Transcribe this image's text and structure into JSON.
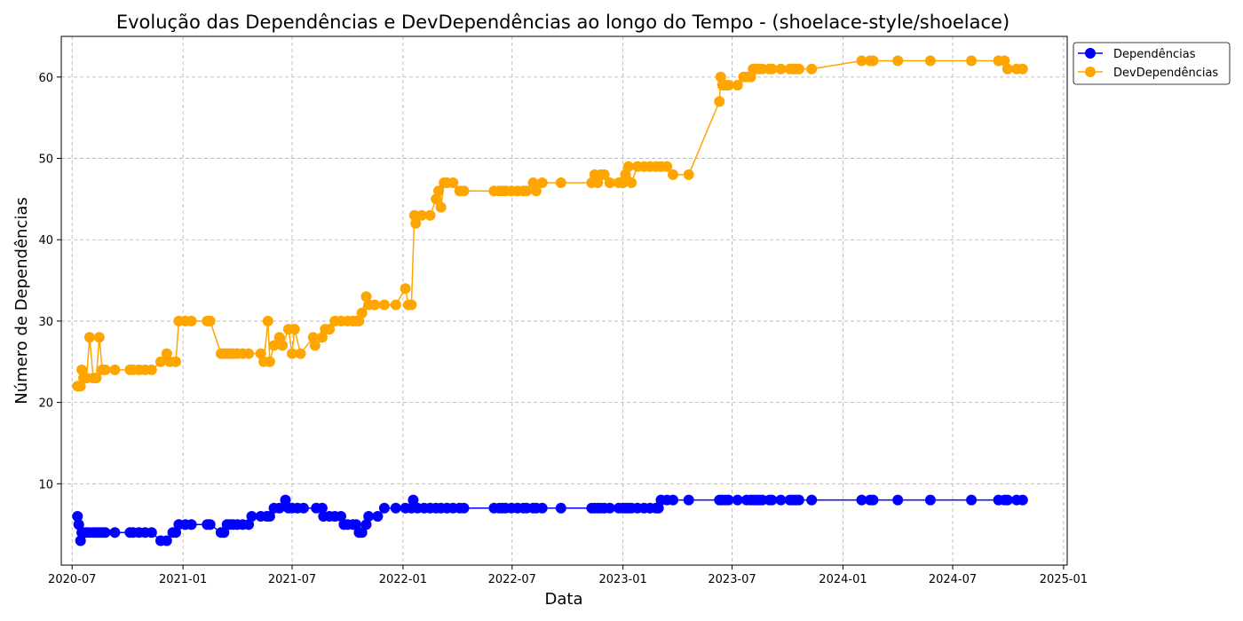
{
  "chart_data": {
    "type": "line",
    "title": "Evolução das Dependências e DevDependências ao longo do Tempo - (shoelace-style/shoelace)",
    "xlabel": "Data",
    "ylabel": "Número de Dependências",
    "xlim": [
      "2020-06-13",
      "2025-01-07"
    ],
    "ylim": [
      0,
      65
    ],
    "x_ticks": [
      "2020-07",
      "2021-01",
      "2021-07",
      "2022-01",
      "2022-07",
      "2023-01",
      "2023-07",
      "2024-01",
      "2024-07",
      "2025-01"
    ],
    "y_ticks": [
      10,
      20,
      30,
      40,
      50,
      60
    ],
    "grid": true,
    "legend_position": "outside-top-right",
    "series": [
      {
        "name": "Dependências",
        "color": "#0000ff",
        "points": [
          [
            "2020-07-10",
            6
          ],
          [
            "2020-07-12",
            5
          ],
          [
            "2020-07-15",
            3
          ],
          [
            "2020-07-17",
            4
          ],
          [
            "2020-07-20",
            4
          ],
          [
            "2020-07-25",
            4
          ],
          [
            "2020-07-30",
            4
          ],
          [
            "2020-08-05",
            4
          ],
          [
            "2020-08-10",
            4
          ],
          [
            "2020-08-15",
            4
          ],
          [
            "2020-08-20",
            4
          ],
          [
            "2020-08-25",
            4
          ],
          [
            "2020-09-10",
            4
          ],
          [
            "2020-10-05",
            4
          ],
          [
            "2020-10-10",
            4
          ],
          [
            "2020-10-20",
            4
          ],
          [
            "2020-10-30",
            4
          ],
          [
            "2020-11-10",
            4
          ],
          [
            "2020-11-25",
            3
          ],
          [
            "2020-12-05",
            3
          ],
          [
            "2020-12-15",
            4
          ],
          [
            "2020-12-20",
            4
          ],
          [
            "2020-12-25",
            5
          ],
          [
            "2021-01-05",
            5
          ],
          [
            "2021-01-15",
            5
          ],
          [
            "2021-02-10",
            5
          ],
          [
            "2021-02-15",
            5
          ],
          [
            "2021-03-05",
            4
          ],
          [
            "2021-03-10",
            4
          ],
          [
            "2021-03-15",
            5
          ],
          [
            "2021-03-20",
            5
          ],
          [
            "2021-03-25",
            5
          ],
          [
            "2021-04-01",
            5
          ],
          [
            "2021-04-10",
            5
          ],
          [
            "2021-04-20",
            5
          ],
          [
            "2021-04-25",
            6
          ],
          [
            "2021-05-10",
            6
          ],
          [
            "2021-05-20",
            6
          ],
          [
            "2021-05-25",
            6
          ],
          [
            "2021-06-01",
            7
          ],
          [
            "2021-06-10",
            7
          ],
          [
            "2021-06-20",
            8
          ],
          [
            "2021-06-25",
            7
          ],
          [
            "2021-07-01",
            7
          ],
          [
            "2021-07-10",
            7
          ],
          [
            "2021-07-20",
            7
          ],
          [
            "2021-08-10",
            7
          ],
          [
            "2021-08-20",
            7
          ],
          [
            "2021-08-22",
            6
          ],
          [
            "2021-09-01",
            6
          ],
          [
            "2021-09-10",
            6
          ],
          [
            "2021-09-20",
            6
          ],
          [
            "2021-09-25",
            5
          ],
          [
            "2021-10-01",
            5
          ],
          [
            "2021-10-10",
            5
          ],
          [
            "2021-10-15",
            5
          ],
          [
            "2021-10-20",
            4
          ],
          [
            "2021-10-25",
            4
          ],
          [
            "2021-11-01",
            5
          ],
          [
            "2021-11-05",
            6
          ],
          [
            "2021-11-20",
            6
          ],
          [
            "2021-12-01",
            7
          ],
          [
            "2021-12-20",
            7
          ],
          [
            "2022-01-05",
            7
          ],
          [
            "2022-01-15",
            7
          ],
          [
            "2022-01-18",
            8
          ],
          [
            "2022-01-25",
            7
          ],
          [
            "2022-02-05",
            7
          ],
          [
            "2022-02-15",
            7
          ],
          [
            "2022-02-25",
            7
          ],
          [
            "2022-03-05",
            7
          ],
          [
            "2022-03-15",
            7
          ],
          [
            "2022-03-25",
            7
          ],
          [
            "2022-04-05",
            7
          ],
          [
            "2022-04-12",
            7
          ],
          [
            "2022-06-01",
            7
          ],
          [
            "2022-06-10",
            7
          ],
          [
            "2022-06-15",
            7
          ],
          [
            "2022-06-20",
            7
          ],
          [
            "2022-06-30",
            7
          ],
          [
            "2022-07-10",
            7
          ],
          [
            "2022-07-20",
            7
          ],
          [
            "2022-07-25",
            7
          ],
          [
            "2022-08-05",
            7
          ],
          [
            "2022-08-10",
            7
          ],
          [
            "2022-08-20",
            7
          ],
          [
            "2022-09-20",
            7
          ],
          [
            "2022-11-10",
            7
          ],
          [
            "2022-11-15",
            7
          ],
          [
            "2022-11-20",
            7
          ],
          [
            "2022-11-25",
            7
          ],
          [
            "2022-12-01",
            7
          ],
          [
            "2022-12-10",
            7
          ],
          [
            "2022-12-25",
            7
          ],
          [
            "2023-01-01",
            7
          ],
          [
            "2023-01-05",
            7
          ],
          [
            "2023-01-10",
            7
          ],
          [
            "2023-01-15",
            7
          ],
          [
            "2023-01-25",
            7
          ],
          [
            "2023-02-05",
            7
          ],
          [
            "2023-02-15",
            7
          ],
          [
            "2023-02-25",
            7
          ],
          [
            "2023-03-01",
            7
          ],
          [
            "2023-03-05",
            8
          ],
          [
            "2023-03-15",
            8
          ],
          [
            "2023-03-25",
            8
          ],
          [
            "2023-04-20",
            8
          ],
          [
            "2023-06-10",
            8
          ],
          [
            "2023-06-15",
            8
          ],
          [
            "2023-06-20",
            8
          ],
          [
            "2023-06-25",
            8
          ],
          [
            "2023-07-10",
            8
          ],
          [
            "2023-07-25",
            8
          ],
          [
            "2023-08-01",
            8
          ],
          [
            "2023-08-05",
            8
          ],
          [
            "2023-08-10",
            8
          ],
          [
            "2023-08-15",
            8
          ],
          [
            "2023-08-20",
            8
          ],
          [
            "2023-09-01",
            8
          ],
          [
            "2023-09-05",
            8
          ],
          [
            "2023-09-20",
            8
          ],
          [
            "2023-10-05",
            8
          ],
          [
            "2023-10-10",
            8
          ],
          [
            "2023-10-15",
            8
          ],
          [
            "2023-10-20",
            8
          ],
          [
            "2023-11-10",
            8
          ],
          [
            "2024-02-01",
            8
          ],
          [
            "2024-02-15",
            8
          ],
          [
            "2024-02-20",
            8
          ],
          [
            "2024-04-01",
            8
          ],
          [
            "2024-05-25",
            8
          ],
          [
            "2024-08-01",
            8
          ],
          [
            "2024-09-15",
            8
          ],
          [
            "2024-09-25",
            8
          ],
          [
            "2024-09-30",
            8
          ],
          [
            "2024-10-15",
            8
          ],
          [
            "2024-10-25",
            8
          ]
        ]
      },
      {
        "name": "DevDependências",
        "color": "#ffa500",
        "points": [
          [
            "2020-07-10",
            22
          ],
          [
            "2020-07-12",
            22
          ],
          [
            "2020-07-15",
            22
          ],
          [
            "2020-07-17",
            24
          ],
          [
            "2020-07-20",
            23
          ],
          [
            "2020-07-25",
            23
          ],
          [
            "2020-07-30",
            28
          ],
          [
            "2020-08-05",
            23
          ],
          [
            "2020-08-10",
            23
          ],
          [
            "2020-08-15",
            28
          ],
          [
            "2020-08-20",
            24
          ],
          [
            "2020-08-25",
            24
          ],
          [
            "2020-09-10",
            24
          ],
          [
            "2020-10-05",
            24
          ],
          [
            "2020-10-10",
            24
          ],
          [
            "2020-10-20",
            24
          ],
          [
            "2020-10-30",
            24
          ],
          [
            "2020-11-10",
            24
          ],
          [
            "2020-11-25",
            25
          ],
          [
            "2020-12-05",
            26
          ],
          [
            "2020-12-10",
            25
          ],
          [
            "2020-12-20",
            25
          ],
          [
            "2020-12-25",
            30
          ],
          [
            "2021-01-05",
            30
          ],
          [
            "2021-01-15",
            30
          ],
          [
            "2021-02-10",
            30
          ],
          [
            "2021-02-15",
            30
          ],
          [
            "2021-03-05",
            26
          ],
          [
            "2021-03-10",
            26
          ],
          [
            "2021-03-15",
            26
          ],
          [
            "2021-03-20",
            26
          ],
          [
            "2021-03-25",
            26
          ],
          [
            "2021-04-01",
            26
          ],
          [
            "2021-04-10",
            26
          ],
          [
            "2021-04-20",
            26
          ],
          [
            "2021-05-10",
            26
          ],
          [
            "2021-05-15",
            25
          ],
          [
            "2021-05-22",
            30
          ],
          [
            "2021-05-25",
            25
          ],
          [
            "2021-06-01",
            27
          ],
          [
            "2021-06-10",
            28
          ],
          [
            "2021-06-15",
            27
          ],
          [
            "2021-06-25",
            29
          ],
          [
            "2021-07-01",
            26
          ],
          [
            "2021-07-05",
            29
          ],
          [
            "2021-07-15",
            26
          ],
          [
            "2021-08-05",
            28
          ],
          [
            "2021-08-08",
            27
          ],
          [
            "2021-08-20",
            28
          ],
          [
            "2021-08-25",
            29
          ],
          [
            "2021-09-01",
            29
          ],
          [
            "2021-09-10",
            30
          ],
          [
            "2021-09-20",
            30
          ],
          [
            "2021-10-01",
            30
          ],
          [
            "2021-10-10",
            30
          ],
          [
            "2021-10-15",
            30
          ],
          [
            "2021-10-20",
            30
          ],
          [
            "2021-10-25",
            31
          ],
          [
            "2021-11-01",
            33
          ],
          [
            "2021-11-05",
            32
          ],
          [
            "2021-11-15",
            32
          ],
          [
            "2021-12-01",
            32
          ],
          [
            "2021-12-20",
            32
          ],
          [
            "2022-01-05",
            34
          ],
          [
            "2022-01-10",
            32
          ],
          [
            "2022-01-15",
            32
          ],
          [
            "2022-01-20",
            43
          ],
          [
            "2022-01-22",
            42
          ],
          [
            "2022-02-01",
            43
          ],
          [
            "2022-02-15",
            43
          ],
          [
            "2022-02-25",
            45
          ],
          [
            "2022-03-01",
            46
          ],
          [
            "2022-03-05",
            44
          ],
          [
            "2022-03-10",
            47
          ],
          [
            "2022-03-15",
            47
          ],
          [
            "2022-03-25",
            47
          ],
          [
            "2022-04-05",
            46
          ],
          [
            "2022-04-12",
            46
          ],
          [
            "2022-06-01",
            46
          ],
          [
            "2022-06-10",
            46
          ],
          [
            "2022-06-15",
            46
          ],
          [
            "2022-06-20",
            46
          ],
          [
            "2022-06-30",
            46
          ],
          [
            "2022-07-10",
            46
          ],
          [
            "2022-07-20",
            46
          ],
          [
            "2022-07-25",
            46
          ],
          [
            "2022-08-05",
            47
          ],
          [
            "2022-08-10",
            46
          ],
          [
            "2022-08-20",
            47
          ],
          [
            "2022-09-20",
            47
          ],
          [
            "2022-11-10",
            47
          ],
          [
            "2022-11-15",
            48
          ],
          [
            "2022-11-20",
            47
          ],
          [
            "2022-11-25",
            48
          ],
          [
            "2022-12-01",
            48
          ],
          [
            "2022-12-10",
            47
          ],
          [
            "2022-12-25",
            47
          ],
          [
            "2023-01-01",
            47
          ],
          [
            "2023-01-05",
            48
          ],
          [
            "2023-01-10",
            49
          ],
          [
            "2023-01-15",
            47
          ],
          [
            "2023-01-25",
            49
          ],
          [
            "2023-02-05",
            49
          ],
          [
            "2023-02-15",
            49
          ],
          [
            "2023-02-25",
            49
          ],
          [
            "2023-03-05",
            49
          ],
          [
            "2023-03-15",
            49
          ],
          [
            "2023-03-25",
            48
          ],
          [
            "2023-04-20",
            48
          ],
          [
            "2023-06-10",
            57
          ],
          [
            "2023-06-12",
            60
          ],
          [
            "2023-06-15",
            59
          ],
          [
            "2023-06-20",
            59
          ],
          [
            "2023-06-25",
            59
          ],
          [
            "2023-07-10",
            59
          ],
          [
            "2023-07-20",
            60
          ],
          [
            "2023-07-25",
            60
          ],
          [
            "2023-08-01",
            60
          ],
          [
            "2023-08-05",
            61
          ],
          [
            "2023-08-10",
            61
          ],
          [
            "2023-08-15",
            61
          ],
          [
            "2023-08-20",
            61
          ],
          [
            "2023-09-01",
            61
          ],
          [
            "2023-09-05",
            61
          ],
          [
            "2023-09-20",
            61
          ],
          [
            "2023-10-05",
            61
          ],
          [
            "2023-10-10",
            61
          ],
          [
            "2023-10-15",
            61
          ],
          [
            "2023-10-20",
            61
          ],
          [
            "2023-11-10",
            61
          ],
          [
            "2024-02-01",
            62
          ],
          [
            "2024-02-15",
            62
          ],
          [
            "2024-02-20",
            62
          ],
          [
            "2024-04-01",
            62
          ],
          [
            "2024-05-25",
            62
          ],
          [
            "2024-08-01",
            62
          ],
          [
            "2024-09-15",
            62
          ],
          [
            "2024-09-25",
            62
          ],
          [
            "2024-09-30",
            61
          ],
          [
            "2024-10-15",
            61
          ],
          [
            "2024-10-25",
            61
          ]
        ]
      }
    ]
  }
}
